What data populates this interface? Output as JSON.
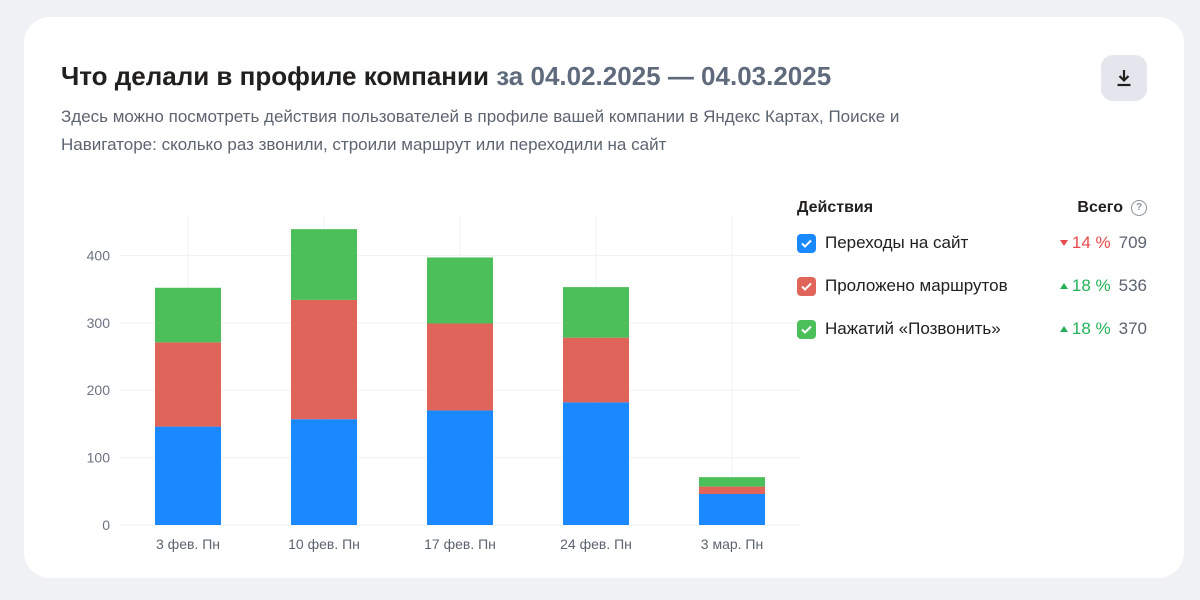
{
  "header": {
    "title": "Что делали в профиле компании",
    "period": "за 04.02.2025 — 04.03.2025",
    "description": "Здесь можно посмотреть действия пользователей в профиле вашей компании в Яндекс Картах, Поиске и Навигаторе: сколько раз звонили, строили маршрут или переходили на сайт",
    "download_icon": "download-icon"
  },
  "legend": {
    "heading": "Действия",
    "total_heading": "Всего",
    "help_glyph": "?",
    "items": [
      {
        "label": "Переходы на сайт",
        "color": "#1a89ff",
        "trend_dir": "down",
        "trend": "14 %",
        "trend_color": "#e64b4b",
        "total": "709"
      },
      {
        "label": "Проложено маршрутов",
        "color": "#e0645a",
        "trend_dir": "up",
        "trend": "18 %",
        "trend_color": "#22b35a",
        "total": "536"
      },
      {
        "label": "Нажатий «Позвонить»",
        "color": "#4cbf5a",
        "trend_dir": "up",
        "trend": "18 %",
        "trend_color": "#22b35a",
        "total": "370"
      }
    ]
  },
  "chart_data": {
    "type": "bar",
    "stacked": true,
    "categories": [
      "3 фев. Пн",
      "10 фев. Пн",
      "17 фев. Пн",
      "24 фев. Пн",
      "3 мар. Пн"
    ],
    "series": [
      {
        "name": "Переходы на сайт",
        "color": "#1a89ff",
        "values": [
          146,
          157,
          170,
          182,
          46
        ]
      },
      {
        "name": "Проложено маршрутов",
        "color": "#e0645a",
        "values": [
          125,
          177,
          129,
          96,
          11
        ]
      },
      {
        "name": "Нажатий «Позвонить»",
        "color": "#4cbf5a",
        "values": [
          81,
          105,
          98,
          75,
          14
        ]
      }
    ],
    "yticks": [
      0,
      100,
      200,
      300,
      400
    ],
    "ylim": [
      0,
      460
    ],
    "grid": true
  }
}
